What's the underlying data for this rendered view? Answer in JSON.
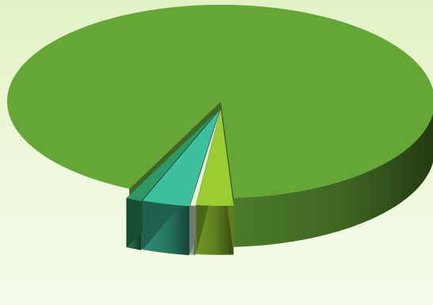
{
  "chart_data": {
    "type": "pie",
    "style": "3d-exploded",
    "title": "",
    "legend": "none",
    "data_labels": "none",
    "slices": [
      {
        "value": 92.0,
        "color": "#65a637"
      },
      {
        "value": 2.8,
        "color": "#9acd32"
      },
      {
        "value": 0.4,
        "color": "#e6f2d6"
      },
      {
        "value": 3.6,
        "color": "#3ebf9e"
      },
      {
        "value": 1.2,
        "color": "#2e9966"
      }
    ]
  }
}
